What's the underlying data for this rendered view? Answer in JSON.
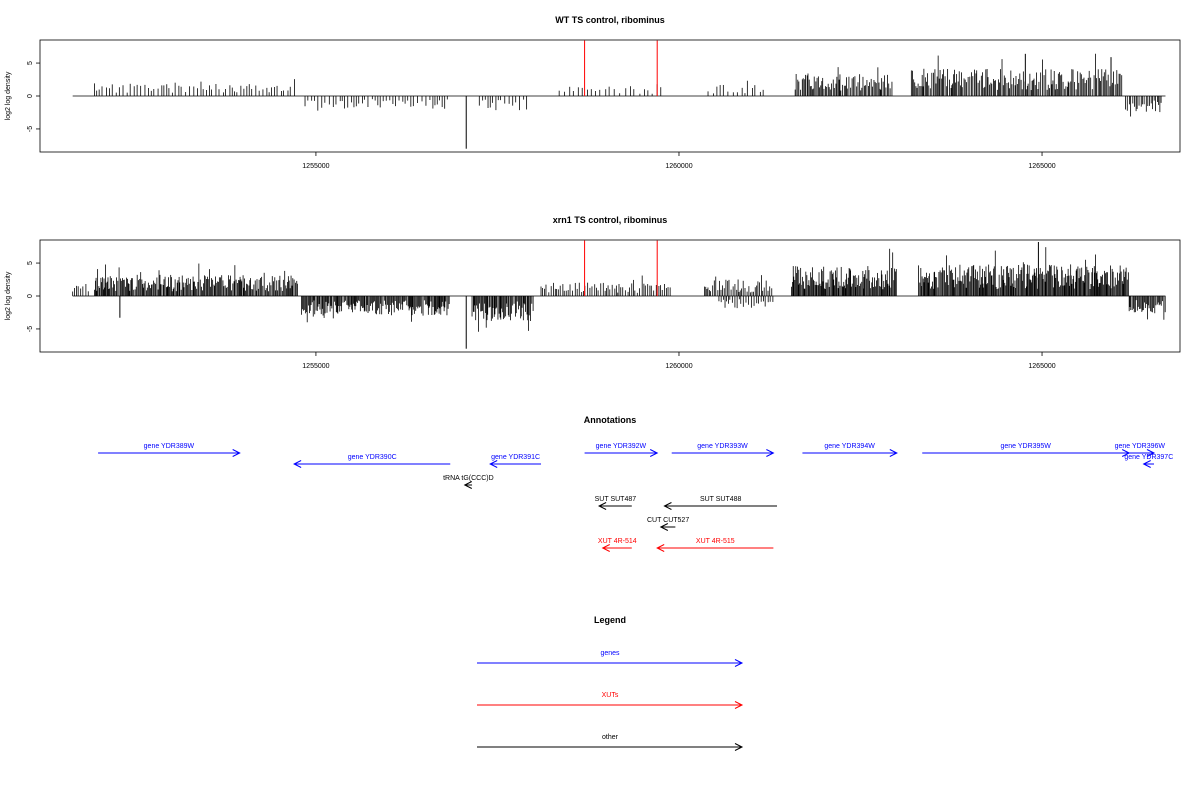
{
  "chart_data": [
    {
      "type": "bar",
      "title": "WT TS control, ribominus",
      "xlabel": "",
      "ylabel": "log2 log density",
      "xlim": [
        1251200,
        1266900
      ],
      "ylim": [
        -8.5,
        8.5
      ],
      "xticks": [
        1255000,
        1260000,
        1265000
      ],
      "xtick_labels": [
        "1255000",
        "1260000",
        "1265000"
      ],
      "yticks": [
        5,
        0,
        -5
      ],
      "ytick_labels": [
        "5",
        "0",
        "-5"
      ],
      "highlight_color": "#ff0000",
      "highlight_lines": [
        1258700,
        1259700
      ],
      "baseline": [
        1251650,
        1266700
      ],
      "series": [
        {
          "type": "region",
          "from": 1251950,
          "to": 1254750,
          "amp": 1.8,
          "sign": 1,
          "step": 45,
          "seed": 11
        },
        {
          "type": "region",
          "from": 1254850,
          "to": 1256850,
          "amp": 1.7,
          "sign": -1,
          "step": 45,
          "seed": 12
        },
        {
          "type": "region",
          "from": 1257250,
          "to": 1257950,
          "amp": 1.9,
          "sign": -1,
          "step": 45,
          "seed": 13
        },
        {
          "type": "region",
          "from": 1258350,
          "to": 1259800,
          "amp": 1.3,
          "sign": 1,
          "step": 60,
          "seed": 14
        },
        {
          "type": "region",
          "from": 1260400,
          "to": 1261200,
          "amp": 1.5,
          "sign": 1,
          "step": 55,
          "seed": 15
        },
        {
          "type": "region",
          "from": 1261600,
          "to": 1262950,
          "amp": 3.0,
          "sign": 1,
          "step": 18,
          "seed": 16
        },
        {
          "type": "region",
          "from": 1263200,
          "to": 1266100,
          "amp": 3.6,
          "sign": 1,
          "step": 18,
          "seed": 17
        },
        {
          "type": "region",
          "from": 1266150,
          "to": 1266650,
          "amp": 2.2,
          "sign": -1,
          "step": 22,
          "seed": 18
        },
        {
          "type": "spike",
          "x": 1257070,
          "y": -8.0
        },
        {
          "type": "spike",
          "x": 1264770,
          "y": 6.4
        },
        {
          "type": "spike",
          "x": 1265950,
          "y": 5.9
        }
      ]
    },
    {
      "type": "bar",
      "title": "xrn1 TS control, ribominus",
      "xlabel": "",
      "ylabel": "log2 log density",
      "xlim": [
        1251200,
        1266900
      ],
      "ylim": [
        -8.5,
        8.5
      ],
      "xticks": [
        1255000,
        1260000,
        1265000
      ],
      "xtick_labels": [
        "1255000",
        "1260000",
        "1265000"
      ],
      "yticks": [
        5,
        0,
        -5
      ],
      "ytick_labels": [
        "5",
        "0",
        "-5"
      ],
      "highlight_color": "#ff0000",
      "highlight_lines": [
        1258700,
        1259700
      ],
      "baseline": [
        1251650,
        1266700
      ],
      "series": [
        {
          "type": "region",
          "from": 1251650,
          "to": 1251900,
          "amp": 1.4,
          "sign": 1,
          "step": 30,
          "seed": 21
        },
        {
          "type": "region",
          "from": 1251950,
          "to": 1254750,
          "amp": 2.8,
          "sign": 1,
          "step": 14,
          "seed": 22
        },
        {
          "type": "region",
          "from": 1254800,
          "to": 1256850,
          "amp": 2.6,
          "sign": -1,
          "step": 14,
          "seed": 23
        },
        {
          "type": "region",
          "from": 1257150,
          "to": 1258000,
          "amp": 3.3,
          "sign": -1,
          "step": 14,
          "seed": 24
        },
        {
          "type": "region",
          "from": 1258100,
          "to": 1259900,
          "amp": 1.8,
          "sign": 1,
          "step": 28,
          "seed": 25
        },
        {
          "type": "region",
          "from": 1260350,
          "to": 1261300,
          "amp": 2.2,
          "sign": 1,
          "step": 22,
          "seed": 26
        },
        {
          "type": "region",
          "from": 1260550,
          "to": 1261300,
          "amp": 1.6,
          "sign": -1,
          "step": 30,
          "seed": 27
        },
        {
          "type": "region",
          "from": 1261550,
          "to": 1263000,
          "amp": 4.0,
          "sign": 1,
          "step": 12,
          "seed": 28
        },
        {
          "type": "region",
          "from": 1263300,
          "to": 1266200,
          "amp": 4.2,
          "sign": 1,
          "step": 12,
          "seed": 29
        },
        {
          "type": "region",
          "from": 1266200,
          "to": 1266700,
          "amp": 2.4,
          "sign": -1,
          "step": 14,
          "seed": 30
        },
        {
          "type": "spike",
          "x": 1252300,
          "y": -3.3
        },
        {
          "type": "spike",
          "x": 1257070,
          "y": -8.0
        },
        {
          "type": "spike",
          "x": 1264950,
          "y": 8.2
        }
      ]
    }
  ],
  "annotations": {
    "title": "Annotations",
    "items": [
      {
        "label": "gene YDR389W",
        "from": 1252000,
        "to": 1253950,
        "dir": "right",
        "row": 0,
        "color": "#0000ff"
      },
      {
        "label": "gene YDR390C",
        "from": 1254700,
        "to": 1256850,
        "dir": "left",
        "row": 1,
        "color": "#0000ff"
      },
      {
        "label": "gene YDR391C",
        "from": 1257400,
        "to": 1258100,
        "dir": "left",
        "row": 1,
        "color": "#0000ff"
      },
      {
        "label": "gene YDR392W",
        "from": 1258700,
        "to": 1259700,
        "dir": "right",
        "row": 0,
        "color": "#0000ff"
      },
      {
        "label": "gene YDR393W",
        "from": 1259900,
        "to": 1261300,
        "dir": "right",
        "row": 0,
        "color": "#0000ff"
      },
      {
        "label": "gene YDR394W",
        "from": 1261700,
        "to": 1263000,
        "dir": "right",
        "row": 0,
        "color": "#0000ff"
      },
      {
        "label": "gene YDR395W",
        "from": 1263350,
        "to": 1266200,
        "dir": "right",
        "row": 0,
        "color": "#0000ff"
      },
      {
        "label": "gene YDR396W",
        "from": 1266150,
        "to": 1266700,
        "dir": "right",
        "row": 0,
        "color": "#0000ff"
      },
      {
        "label": "gene YDR397C",
        "from": 1266400,
        "to": 1266900,
        "dir": "left",
        "row": 1,
        "color": "#0000ff"
      },
      {
        "label": "tRNA tG(CCC)D",
        "from": 1257050,
        "to": 1257150,
        "dir": "left",
        "row": 2,
        "color": "#000000"
      },
      {
        "label": "SUT SUT487",
        "from": 1258900,
        "to": 1259350,
        "dir": "left",
        "row": 3,
        "color": "#000000"
      },
      {
        "label": "SUT SUT488",
        "from": 1259800,
        "to": 1261350,
        "dir": "left",
        "row": 3,
        "color": "#000000"
      },
      {
        "label": "CUT CUT527",
        "from": 1259750,
        "to": 1259950,
        "dir": "left",
        "row": 4,
        "color": "#000000"
      },
      {
        "label": "XUT 4R-514",
        "from": 1258950,
        "to": 1259350,
        "dir": "left",
        "row": 5,
        "color": "#ff0000"
      },
      {
        "label": "XUT 4R-515",
        "from": 1259700,
        "to": 1261300,
        "dir": "left",
        "row": 5,
        "color": "#ff0000"
      }
    ]
  },
  "legend": {
    "title": "Legend",
    "items": [
      {
        "label": "genes",
        "color": "#0000ff"
      },
      {
        "label": "XUTs",
        "color": "#ff0000"
      },
      {
        "label": "other",
        "color": "#000000"
      }
    ]
  }
}
